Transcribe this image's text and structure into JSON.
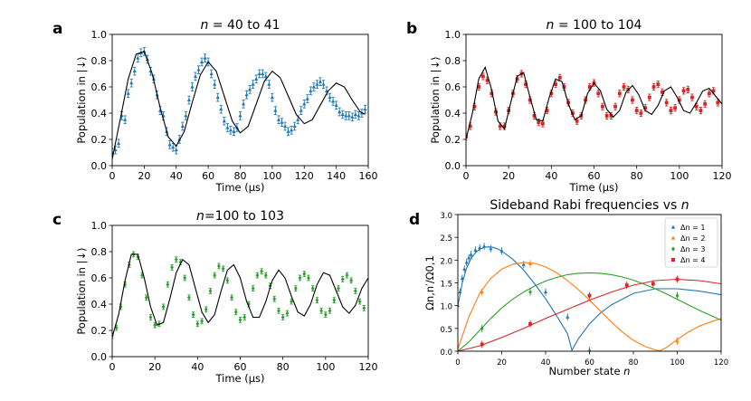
{
  "figure": {
    "panel_letters": [
      "a",
      "b",
      "c",
      "d"
    ]
  },
  "chart_data": [
    {
      "panel": "a",
      "type": "scatter",
      "title": "n = 40 to 41",
      "title_var": "n",
      "title_rest": " = 40 to 41",
      "xlabel": "Time (μs)",
      "ylabel": "Population in |↓⟩",
      "xlim": [
        0,
        160
      ],
      "ylim": [
        0,
        1.0
      ],
      "xticks": [
        0,
        20,
        40,
        60,
        80,
        100,
        120,
        140,
        160
      ],
      "yticks": [
        0.0,
        0.2,
        0.4,
        0.6,
        0.8,
        1.0
      ],
      "ytick_labels": [
        "0.0",
        "0.2",
        "0.4",
        "0.6",
        "0.8",
        "1.0"
      ],
      "series": [
        {
          "name": "measured",
          "color": "#1f77b4",
          "marker": "triangle",
          "error_bar": 0.03,
          "x": [
            0,
            2,
            4,
            6,
            8,
            10,
            12,
            14,
            16,
            18,
            20,
            22,
            24,
            26,
            28,
            30,
            32,
            34,
            36,
            38,
            40,
            42,
            44,
            46,
            48,
            50,
            52,
            54,
            56,
            58,
            60,
            62,
            64,
            66,
            68,
            70,
            72,
            74,
            76,
            78,
            80,
            82,
            84,
            86,
            88,
            90,
            92,
            94,
            96,
            98,
            100,
            102,
            104,
            106,
            108,
            110,
            112,
            114,
            116,
            118,
            120,
            122,
            124,
            126,
            128,
            130,
            132,
            134,
            136,
            138,
            140,
            142,
            144,
            146,
            148,
            150,
            152,
            154,
            156,
            158
          ],
          "y": [
            0.1,
            0.12,
            0.17,
            0.38,
            0.35,
            0.55,
            0.63,
            0.72,
            0.82,
            0.86,
            0.87,
            0.81,
            0.72,
            0.66,
            0.54,
            0.42,
            0.38,
            0.26,
            0.16,
            0.14,
            0.12,
            0.2,
            0.3,
            0.38,
            0.5,
            0.6,
            0.68,
            0.73,
            0.79,
            0.82,
            0.79,
            0.7,
            0.62,
            0.52,
            0.43,
            0.34,
            0.29,
            0.27,
            0.26,
            0.29,
            0.38,
            0.47,
            0.54,
            0.58,
            0.62,
            0.66,
            0.7,
            0.7,
            0.68,
            0.62,
            0.52,
            0.42,
            0.35,
            0.33,
            0.3,
            0.26,
            0.27,
            0.3,
            0.35,
            0.42,
            0.47,
            0.51,
            0.57,
            0.6,
            0.62,
            0.64,
            0.62,
            0.57,
            0.52,
            0.49,
            0.46,
            0.41,
            0.39,
            0.38,
            0.38,
            0.37,
            0.39,
            0.38,
            0.4,
            0.43
          ]
        },
        {
          "name": "fit",
          "color": "#000000",
          "x": [
            0,
            5,
            10,
            15,
            20,
            25,
            30,
            35,
            40,
            45,
            50,
            55,
            60,
            65,
            70,
            75,
            80,
            85,
            90,
            95,
            100,
            105,
            110,
            115,
            120,
            125,
            130,
            135,
            140,
            145,
            150,
            155,
            158
          ],
          "y": [
            0.05,
            0.35,
            0.66,
            0.85,
            0.87,
            0.7,
            0.44,
            0.22,
            0.15,
            0.26,
            0.48,
            0.69,
            0.79,
            0.72,
            0.53,
            0.34,
            0.25,
            0.3,
            0.47,
            0.64,
            0.72,
            0.67,
            0.53,
            0.39,
            0.32,
            0.35,
            0.46,
            0.57,
            0.63,
            0.6,
            0.5,
            0.41,
            0.39
          ]
        }
      ]
    },
    {
      "panel": "b",
      "type": "scatter",
      "title": "n = 100 to 104",
      "title_var": "n",
      "title_rest": " = 100 to 104",
      "xlabel": "Time (μs)",
      "ylabel": "Population in |↓⟩",
      "xlim": [
        0,
        120
      ],
      "ylim": [
        0,
        1.0
      ],
      "xticks": [
        0,
        20,
        40,
        60,
        80,
        100,
        120
      ],
      "yticks": [
        0.0,
        0.2,
        0.4,
        0.6,
        0.8,
        1.0
      ],
      "ytick_labels": [
        "0.0",
        "0.2",
        "0.4",
        "0.6",
        "0.8",
        "1.0"
      ],
      "series": [
        {
          "name": "measured",
          "color": "#d62728",
          "marker": "square",
          "error_bar": 0.025,
          "x": [
            0,
            2,
            4,
            6,
            8,
            10,
            12,
            14,
            16,
            18,
            20,
            22,
            24,
            26,
            28,
            30,
            32,
            34,
            36,
            38,
            40,
            42,
            44,
            46,
            48,
            50,
            52,
            54,
            56,
            58,
            60,
            62,
            64,
            66,
            68,
            70,
            72,
            74,
            76,
            78,
            80,
            82,
            84,
            86,
            88,
            90,
            92,
            94,
            96,
            98,
            100,
            102,
            104,
            106,
            108,
            110,
            112,
            114,
            116,
            118
          ],
          "y": [
            0.22,
            0.3,
            0.45,
            0.6,
            0.68,
            0.65,
            0.55,
            0.41,
            0.3,
            0.3,
            0.42,
            0.55,
            0.66,
            0.7,
            0.62,
            0.5,
            0.38,
            0.33,
            0.32,
            0.42,
            0.55,
            0.62,
            0.67,
            0.6,
            0.48,
            0.4,
            0.34,
            0.38,
            0.5,
            0.6,
            0.63,
            0.55,
            0.45,
            0.38,
            0.38,
            0.45,
            0.55,
            0.6,
            0.58,
            0.5,
            0.42,
            0.4,
            0.44,
            0.52,
            0.6,
            0.62,
            0.56,
            0.48,
            0.42,
            0.44,
            0.5,
            0.57,
            0.58,
            0.52,
            0.45,
            0.42,
            0.47,
            0.55,
            0.57,
            0.48
          ]
        },
        {
          "name": "fit",
          "color": "#000000",
          "x": [
            0,
            3,
            6,
            9,
            12,
            15,
            18,
            21,
            24,
            27,
            30,
            33,
            36,
            39,
            42,
            45,
            48,
            51,
            54,
            57,
            60,
            63,
            66,
            69,
            72,
            75,
            78,
            81,
            84,
            87,
            90,
            93,
            96,
            99,
            102,
            105,
            108,
            111,
            114,
            117,
            120
          ],
          "y": [
            0.2,
            0.4,
            0.66,
            0.75,
            0.58,
            0.34,
            0.28,
            0.48,
            0.68,
            0.71,
            0.52,
            0.35,
            0.34,
            0.52,
            0.66,
            0.64,
            0.47,
            0.35,
            0.38,
            0.55,
            0.63,
            0.57,
            0.43,
            0.37,
            0.42,
            0.56,
            0.61,
            0.54,
            0.42,
            0.39,
            0.46,
            0.57,
            0.6,
            0.52,
            0.42,
            0.4,
            0.48,
            0.57,
            0.59,
            0.53,
            0.47
          ]
        }
      ]
    },
    {
      "panel": "c",
      "type": "scatter",
      "title": "n=100 to 103",
      "title_var": "n",
      "title_rest": "=100 to 103",
      "xlabel": "Time (μs)",
      "ylabel": "Population in |↓⟩",
      "xlim": [
        0,
        120
      ],
      "ylim": [
        0,
        1.0
      ],
      "xticks": [
        0,
        20,
        40,
        60,
        80,
        100,
        120
      ],
      "yticks": [
        0.0,
        0.2,
        0.4,
        0.6,
        0.8,
        1.0
      ],
      "ytick_labels": [
        "0.0",
        "0.2",
        "0.4",
        "0.6",
        "0.8",
        "1.0"
      ],
      "series": [
        {
          "name": "measured",
          "color": "#2ca02c",
          "marker": "diamond",
          "error_bar": 0.02,
          "x": [
            0,
            2,
            4,
            6,
            8,
            10,
            12,
            14,
            16,
            18,
            20,
            22,
            24,
            26,
            28,
            30,
            32,
            34,
            36,
            38,
            40,
            42,
            44,
            46,
            48,
            50,
            52,
            54,
            56,
            58,
            60,
            62,
            64,
            66,
            68,
            70,
            72,
            74,
            76,
            78,
            80,
            82,
            84,
            86,
            88,
            90,
            92,
            94,
            96,
            98,
            100,
            102,
            104,
            106,
            108,
            110,
            112,
            114,
            116,
            118
          ],
          "y": [
            0.16,
            0.22,
            0.38,
            0.55,
            0.7,
            0.78,
            0.76,
            0.62,
            0.45,
            0.3,
            0.24,
            0.25,
            0.38,
            0.55,
            0.68,
            0.74,
            0.72,
            0.6,
            0.45,
            0.32,
            0.25,
            0.27,
            0.36,
            0.5,
            0.62,
            0.69,
            0.67,
            0.58,
            0.45,
            0.34,
            0.28,
            0.3,
            0.4,
            0.52,
            0.62,
            0.65,
            0.62,
            0.54,
            0.44,
            0.35,
            0.3,
            0.33,
            0.42,
            0.52,
            0.6,
            0.63,
            0.6,
            0.52,
            0.43,
            0.35,
            0.32,
            0.35,
            0.43,
            0.52,
            0.59,
            0.62,
            0.58,
            0.5,
            0.42,
            0.37
          ]
        },
        {
          "name": "fit",
          "color": "#000000",
          "x": [
            0,
            3,
            6,
            9,
            12,
            15,
            18,
            21,
            24,
            27,
            30,
            33,
            36,
            39,
            42,
            45,
            48,
            51,
            54,
            57,
            60,
            63,
            66,
            69,
            72,
            75,
            78,
            81,
            84,
            87,
            90,
            93,
            96,
            99,
            102,
            105,
            108,
            111,
            114,
            117,
            120
          ],
          "y": [
            0.15,
            0.32,
            0.58,
            0.78,
            0.78,
            0.6,
            0.38,
            0.24,
            0.26,
            0.44,
            0.64,
            0.74,
            0.7,
            0.52,
            0.34,
            0.26,
            0.32,
            0.5,
            0.66,
            0.7,
            0.6,
            0.42,
            0.3,
            0.3,
            0.42,
            0.58,
            0.66,
            0.6,
            0.46,
            0.34,
            0.31,
            0.4,
            0.55,
            0.64,
            0.62,
            0.5,
            0.38,
            0.33,
            0.39,
            0.52,
            0.6
          ]
        }
      ]
    },
    {
      "panel": "d",
      "type": "scatter",
      "title": "Sideband Rabi frequencies vs n",
      "title_text": "Sideband Rabi frequencies vs ",
      "title_var": "n",
      "xlabel": "Number state n",
      "xlabel_text": "Number state ",
      "xlabel_var": "n",
      "ylabel": "Ωn,n′/Ω0,1",
      "xlim": [
        0,
        120
      ],
      "ylim": [
        0,
        3.0
      ],
      "xticks": [
        0,
        20,
        40,
        60,
        80,
        100,
        120
      ],
      "yticks": [
        0.0,
        0.5,
        1.0,
        1.5,
        2.0,
        2.5,
        3.0
      ],
      "ytick_labels": [
        "0.0",
        "0.5",
        "1.0",
        "1.5",
        "2.0",
        "2.5",
        "3.0"
      ],
      "legend_position": "top-right",
      "series": [
        {
          "name": "Δn = 1",
          "color": "#1f77b4",
          "marker": "triangle",
          "points_x": [
            0,
            1,
            2,
            3,
            4,
            5,
            6,
            8,
            10,
            12,
            15,
            20,
            30,
            40,
            50,
            60
          ],
          "points_y": [
            1.0,
            1.3,
            1.6,
            1.8,
            1.95,
            2.05,
            2.12,
            2.22,
            2.27,
            2.3,
            2.25,
            2.2,
            1.9,
            1.3,
            0.75,
            0.02
          ],
          "curve_x": [
            0,
            2,
            4,
            6,
            8,
            10,
            12,
            14,
            16,
            18,
            20,
            25,
            30,
            35,
            40,
            45,
            50,
            52,
            55,
            60,
            65,
            70,
            80,
            90,
            100,
            110,
            120
          ],
          "curve_y": [
            1.0,
            1.5,
            1.82,
            2.03,
            2.16,
            2.24,
            2.28,
            2.29,
            2.28,
            2.25,
            2.2,
            2.02,
            1.78,
            1.48,
            1.15,
            0.78,
            0.38,
            0.02,
            0.28,
            0.6,
            0.84,
            1.02,
            1.27,
            1.37,
            1.37,
            1.32,
            1.24
          ]
        },
        {
          "name": "Δn = 2",
          "color": "#ff7f0e",
          "marker": "triangle",
          "points_x": [
            0,
            11,
            33,
            100
          ],
          "points_y": [
            0.1,
            1.3,
            1.92,
            0.22
          ],
          "curve_x": [
            0,
            5,
            10,
            15,
            20,
            25,
            30,
            35,
            40,
            45,
            50,
            55,
            60,
            65,
            70,
            75,
            80,
            85,
            90,
            92,
            95,
            100,
            105,
            110,
            115,
            120
          ],
          "curve_y": [
            0.05,
            0.75,
            1.28,
            1.6,
            1.8,
            1.91,
            1.95,
            1.93,
            1.85,
            1.72,
            1.55,
            1.35,
            1.12,
            0.88,
            0.64,
            0.42,
            0.24,
            0.11,
            0.03,
            0.01,
            0.08,
            0.26,
            0.42,
            0.55,
            0.64,
            0.72
          ]
        },
        {
          "name": "Δn = 3",
          "color": "#2ca02c",
          "marker": "diamond",
          "points_x": [
            11,
            33,
            100
          ],
          "points_y": [
            0.5,
            1.3,
            1.22
          ],
          "curve_x": [
            0,
            5,
            10,
            15,
            20,
            25,
            30,
            35,
            40,
            45,
            50,
            55,
            60,
            65,
            70,
            75,
            80,
            85,
            90,
            95,
            100,
            105,
            110,
            115,
            120
          ],
          "curve_y": [
            0.0,
            0.2,
            0.46,
            0.72,
            0.95,
            1.14,
            1.3,
            1.43,
            1.54,
            1.62,
            1.68,
            1.71,
            1.72,
            1.71,
            1.68,
            1.63,
            1.56,
            1.47,
            1.37,
            1.26,
            1.14,
            1.02,
            0.9,
            0.79,
            0.68
          ]
        },
        {
          "name": "Δn = 4",
          "color": "#d62728",
          "marker": "square",
          "points_x": [
            11,
            33,
            60,
            77,
            89,
            100
          ],
          "points_y": [
            0.15,
            0.6,
            1.22,
            1.45,
            1.48,
            1.58
          ],
          "curve_x": [
            0,
            10,
            20,
            30,
            40,
            50,
            60,
            70,
            80,
            90,
            100,
            110,
            120
          ],
          "curve_y": [
            0.0,
            0.12,
            0.3,
            0.5,
            0.72,
            0.92,
            1.12,
            1.3,
            1.45,
            1.55,
            1.58,
            1.55,
            1.48
          ]
        }
      ]
    }
  ]
}
